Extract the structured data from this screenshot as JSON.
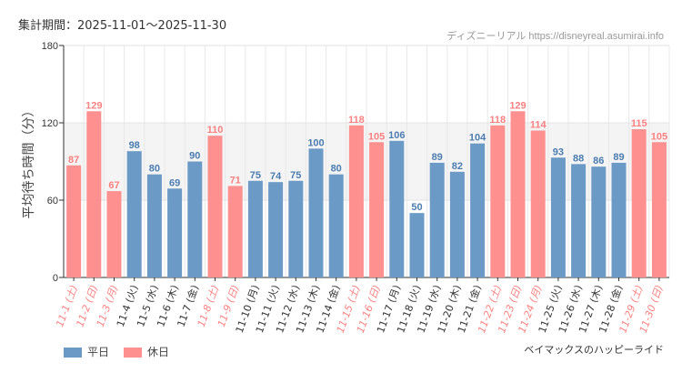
{
  "header": {
    "period": "集計期間：2025-11-01〜2025-11-30",
    "source": "ディズニーリアル https://disneyreal.asumirai.info",
    "attraction": "ベイマックスのハッピーライド"
  },
  "colors": {
    "weekday": "#6b9ac7",
    "holiday": "#ff9090",
    "holiday_text": "#ff8080"
  },
  "chart_data": {
    "type": "bar",
    "ylabel": "平均待ち時間（分）",
    "ylim": [
      0,
      180
    ],
    "yticks": [
      0,
      60,
      120,
      180
    ],
    "grid": true,
    "legend": [
      {
        "name": "平日",
        "key": "weekday"
      },
      {
        "name": "休日",
        "key": "holiday"
      }
    ],
    "legend_position": "bottom-left",
    "categories": [
      "11-1 (土)",
      "11-2 (日)",
      "11-3 (月)",
      "11-4 (火)",
      "11-5 (水)",
      "11-6 (木)",
      "11-7 (金)",
      "11-8 (土)",
      "11-9 (日)",
      "11-10 (月)",
      "11-11 (火)",
      "11-12 (水)",
      "11-13 (木)",
      "11-14 (金)",
      "11-15 (土)",
      "11-16 (日)",
      "11-17 (月)",
      "11-18 (火)",
      "11-19 (水)",
      "11-20 (木)",
      "11-21 (金)",
      "11-22 (土)",
      "11-23 (日)",
      "11-24 (月)",
      "11-25 (火)",
      "11-26 (水)",
      "11-27 (木)",
      "11-28 (金)",
      "11-29 (土)",
      "11-30 (日)"
    ],
    "values": [
      87,
      129,
      67,
      98,
      80,
      69,
      90,
      110,
      71,
      75,
      74,
      75,
      100,
      80,
      118,
      105,
      106,
      50,
      89,
      82,
      104,
      118,
      129,
      114,
      93,
      88,
      86,
      89,
      115,
      105
    ],
    "holiday": [
      1,
      1,
      1,
      0,
      0,
      0,
      0,
      1,
      1,
      0,
      0,
      0,
      0,
      0,
      1,
      1,
      0,
      0,
      0,
      0,
      0,
      1,
      1,
      1,
      0,
      0,
      0,
      0,
      1,
      1
    ]
  }
}
